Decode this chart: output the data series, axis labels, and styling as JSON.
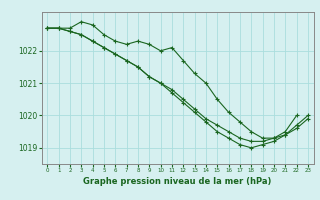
{
  "title": "Graphe pression niveau de la mer (hPa)",
  "bg_color": "#d6f0f0",
  "grid_color": "#aadddd",
  "line_color": "#1a6620",
  "marker_color": "#1a6620",
  "xlim": [
    -0.5,
    23.5
  ],
  "ylim": [
    1018.5,
    1023.2
  ],
  "yticks": [
    1019,
    1020,
    1021,
    1022
  ],
  "xticks": [
    0,
    1,
    2,
    3,
    4,
    5,
    6,
    7,
    8,
    9,
    10,
    11,
    12,
    13,
    14,
    15,
    16,
    17,
    18,
    19,
    20,
    21,
    22,
    23
  ],
  "series": [
    [
      1022.7,
      1022.7,
      1022.7,
      1022.9,
      1022.8,
      1022.5,
      1022.3,
      1022.2,
      1022.3,
      1022.2,
      1022.0,
      1022.1,
      1021.7,
      1021.3,
      1021.0,
      1020.5,
      1020.1,
      1019.8,
      1019.5,
      1019.3,
      1019.3,
      1019.5,
      1020.0,
      null
    ],
    [
      1022.7,
      1022.7,
      1022.6,
      1022.5,
      1022.3,
      1022.1,
      1021.9,
      1021.7,
      1021.5,
      1021.2,
      1021.0,
      1020.8,
      1020.5,
      1020.2,
      1019.9,
      1019.7,
      1019.5,
      1019.3,
      1019.2,
      1019.2,
      1019.3,
      1019.4,
      1019.6,
      1019.9
    ],
    [
      1022.7,
      1022.7,
      1022.6,
      1022.5,
      1022.3,
      1022.1,
      1021.9,
      1021.7,
      1021.5,
      1021.2,
      1021.0,
      1020.7,
      1020.4,
      1020.1,
      1019.8,
      1019.5,
      1019.3,
      1019.1,
      1019.0,
      1019.1,
      1019.2,
      1019.4,
      1019.7,
      1020.0
    ]
  ]
}
